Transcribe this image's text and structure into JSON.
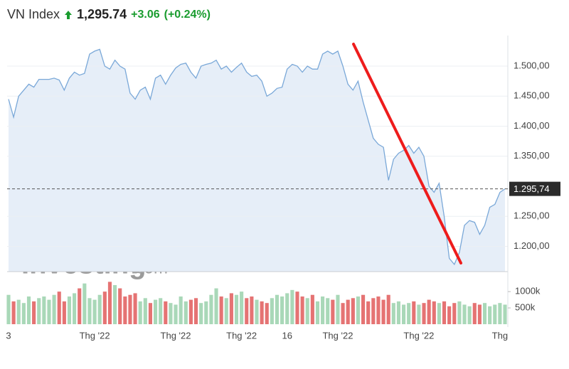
{
  "header": {
    "name": "VN Index",
    "price": "1,295.74",
    "change": "+3.06",
    "change_pct": "(+0.24%)"
  },
  "watermark": {
    "brand": "Investing",
    "suffix": ".com"
  },
  "chart_data": {
    "type": "line",
    "categories": [
      "3",
      null,
      null,
      null,
      null,
      null,
      null,
      null,
      null,
      null,
      null,
      null,
      null,
      null,
      null,
      null,
      null,
      "Thg '22",
      null,
      null,
      null,
      null,
      null,
      null,
      null,
      null,
      null,
      null,
      null,
      null,
      null,
      null,
      null,
      "Thg '22",
      null,
      null,
      null,
      null,
      null,
      null,
      null,
      null,
      null,
      null,
      null,
      null,
      "Thg '22",
      null,
      null,
      null,
      null,
      null,
      null,
      null,
      null,
      "16",
      null,
      null,
      null,
      null,
      null,
      null,
      null,
      null,
      null,
      "Thg '22",
      null,
      null,
      null,
      null,
      null,
      null,
      null,
      null,
      null,
      null,
      null,
      null,
      null,
      null,
      null,
      "Thg '22",
      null,
      null,
      null,
      null,
      null,
      null,
      null,
      null,
      null,
      null,
      null,
      null,
      null,
      null,
      null,
      "Thg",
      null
    ],
    "series": [
      {
        "color": "#7aa8d8",
        "fill": "#e6eef8",
        "values": [
          1445,
          1415,
          1450,
          1460,
          1470,
          1465,
          1478,
          1478,
          1478,
          1480,
          1477,
          1460,
          1480,
          1490,
          1485,
          1488,
          1520,
          1525,
          1528,
          1500,
          1495,
          1510,
          1500,
          1495,
          1455,
          1445,
          1460,
          1465,
          1445,
          1480,
          1485,
          1470,
          1485,
          1497,
          1503,
          1505,
          1490,
          1480,
          1500,
          1503,
          1505,
          1510,
          1495,
          1500,
          1490,
          1498,
          1505,
          1490,
          1483,
          1485,
          1475,
          1450,
          1455,
          1463,
          1465,
          1495,
          1503,
          1500,
          1490,
          1500,
          1495,
          1495,
          1520,
          1525,
          1520,
          1525,
          1500,
          1470,
          1460,
          1475,
          1440,
          1410,
          1380,
          1370,
          1365,
          1310,
          1345,
          1355,
          1360,
          1368,
          1355,
          1365,
          1350,
          1300,
          1290,
          1305,
          1250,
          1180,
          1170,
          1190,
          1235,
          1243,
          1240,
          1220,
          1235,
          1265,
          1270,
          1290,
          1295.74
        ]
      },
      {
        "type": "bar",
        "axis": "y2",
        "up_color": "#a9d8b8",
        "down_color": "#e57373",
        "values": [
          900000,
          700000,
          750000,
          650000,
          850000,
          700000,
          800000,
          850000,
          750000,
          900000,
          1000000,
          700000,
          850000,
          950000,
          1100000,
          1250000,
          800000,
          750000,
          900000,
          1000000,
          1300000,
          1200000,
          1100000,
          850000,
          900000,
          950000,
          700000,
          800000,
          650000,
          750000,
          800000,
          700000,
          650000,
          600000,
          850000,
          700000,
          750000,
          800000,
          650000,
          700000,
          900000,
          1100000,
          850000,
          800000,
          950000,
          900000,
          1000000,
          800000,
          850000,
          750000,
          700000,
          650000,
          800000,
          900000,
          850000,
          950000,
          1050000,
          1000000,
          850000,
          800000,
          900000,
          700000,
          850000,
          800000,
          750000,
          900000,
          650000,
          750000,
          800000,
          850000,
          900000,
          700000,
          800000,
          850000,
          750000,
          900000,
          650000,
          700000,
          600000,
          650000,
          700000,
          600000,
          650000,
          750000,
          700000,
          650000,
          700000,
          550000,
          650000,
          700000,
          600000,
          550000,
          650000,
          600000,
          650000,
          550000,
          600000,
          650000,
          600000
        ]
      }
    ],
    "ylim": [
      1158,
      1545
    ],
    "yticks": [
      {
        "value": 1200,
        "label": "1.200,00"
      },
      {
        "value": 1250,
        "label": "1.250,00"
      },
      {
        "value": 1350,
        "label": "1.350,00"
      },
      {
        "value": 1400,
        "label": "1.400,00"
      },
      {
        "value": 1450,
        "label": "1.450,00"
      },
      {
        "value": 1500,
        "label": "1.500,00"
      }
    ],
    "y2lim": [
      0,
      1330000
    ],
    "y2ticks": [
      {
        "value": 500000,
        "label": "500k"
      },
      {
        "value": 1000000,
        "label": "1000k"
      }
    ],
    "last_price": {
      "value": 1295.74,
      "label": "1.295,74"
    },
    "grid": true
  }
}
